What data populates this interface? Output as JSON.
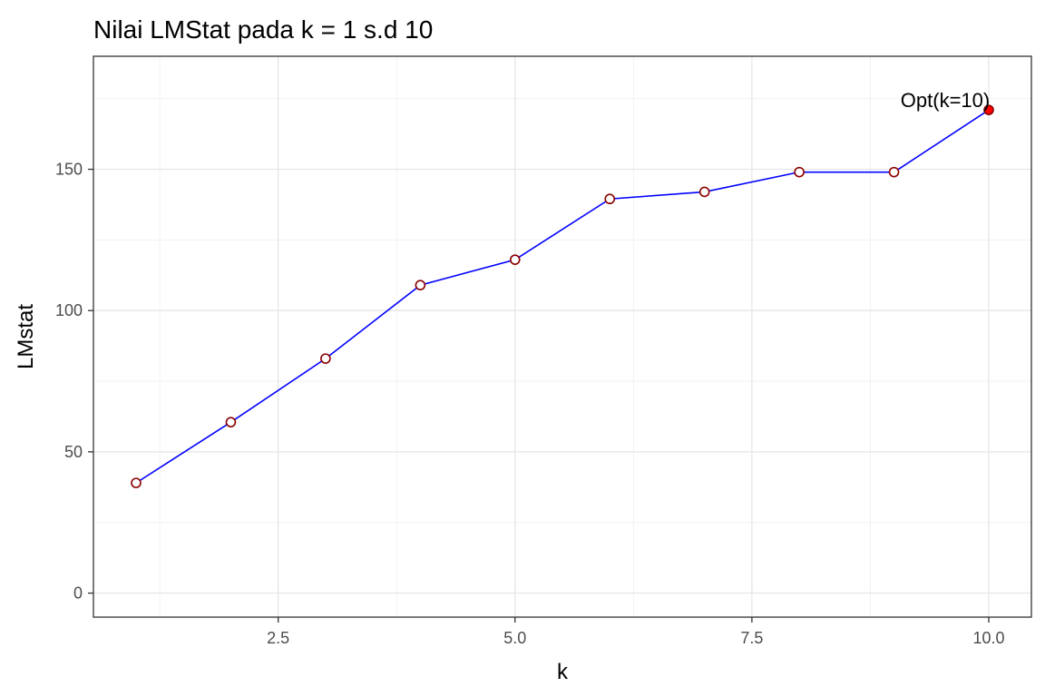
{
  "chart_data": {
    "type": "line",
    "title": "Nilai LMStat pada k = 1 s.d 10",
    "xlabel": "k",
    "ylabel": "LMstat",
    "xlim": [
      0.55,
      10.45
    ],
    "ylim": [
      -8.5,
      190
    ],
    "x_ticks": [
      2.5,
      5.0,
      7.5,
      10.0
    ],
    "x_tick_labels": [
      "2.5",
      "5.0",
      "7.5",
      "10.0"
    ],
    "y_ticks": [
      0,
      50,
      100,
      150
    ],
    "y_tick_labels": [
      "0",
      "50",
      "100",
      "150"
    ],
    "grid": true,
    "legend": "none",
    "series": [
      {
        "x": [
          1,
          2,
          3,
          4,
          5,
          6,
          7,
          8,
          9,
          10
        ],
        "values": [
          39,
          60.5,
          83,
          109,
          118,
          139.5,
          142,
          149,
          149,
          171
        ],
        "line_color": "#0000ff",
        "marker_fill": "#ffffff",
        "marker_edge": "#8b0000"
      }
    ],
    "highlight": {
      "x": 10,
      "y": 171,
      "label": "Opt(k=10)",
      "color": "#ff0000"
    }
  }
}
